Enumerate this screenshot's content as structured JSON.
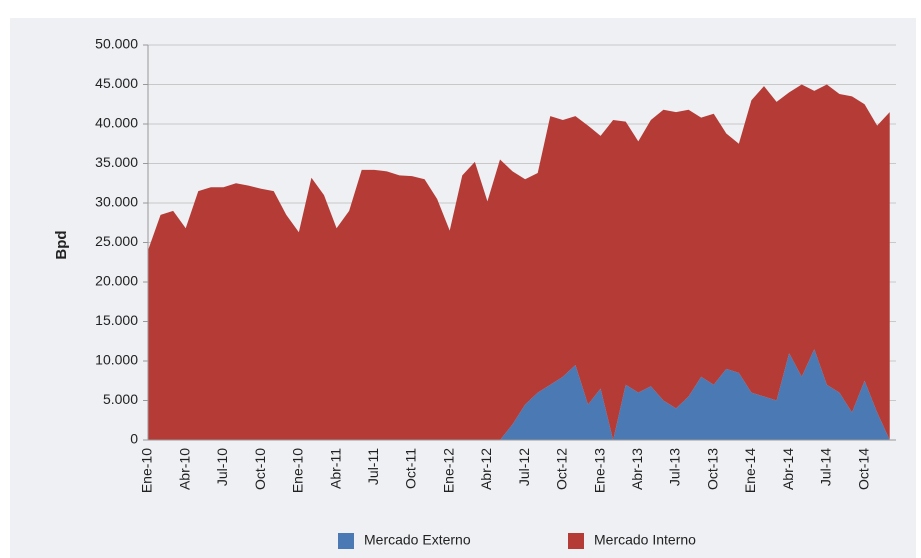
{
  "chart_data": {
    "type": "area",
    "stacked": true,
    "y_label": "Bpd",
    "categories": [
      "Ene-10",
      null,
      null,
      "Abr-10",
      null,
      null,
      "Jul-10",
      null,
      null,
      "Oct-10",
      null,
      null,
      "Ene-10",
      null,
      null,
      "Abr-11",
      null,
      null,
      "Jul-11",
      null,
      null,
      "Oct-11",
      null,
      null,
      "Ene-12",
      null,
      null,
      "Abr-12",
      null,
      null,
      "Jul-12",
      null,
      null,
      "Oct-12",
      null,
      null,
      "Ene-13",
      null,
      null,
      "Abr-13",
      null,
      null,
      "Jul-13",
      null,
      null,
      "Oct-13",
      null,
      null,
      "Ene-14",
      null,
      null,
      "Abr-14",
      null,
      null,
      "Jul-14",
      null,
      null,
      "Oct-14",
      null,
      null
    ],
    "series": [
      {
        "name": "Mercado Externo",
        "color": "#4a79b4",
        "values": [
          0,
          0,
          0,
          0,
          0,
          0,
          0,
          0,
          0,
          0,
          0,
          0,
          0,
          0,
          0,
          0,
          0,
          0,
          0,
          0,
          0,
          0,
          0,
          0,
          0,
          0,
          0,
          0,
          0,
          2000,
          4500,
          6000,
          7000,
          8000,
          9500,
          4500,
          6500,
          0,
          7000,
          6000,
          6800,
          5000,
          4000,
          5500,
          8000,
          7000,
          9000,
          8500,
          6000,
          5500,
          5000,
          11000,
          8000,
          11500,
          7000,
          6000,
          3500,
          7500,
          3500,
          0
        ]
      },
      {
        "name": "Mercado Interno",
        "color": "#b43b36",
        "values": [
          24000,
          28500,
          29000,
          26800,
          31500,
          32000,
          32000,
          32500,
          32200,
          31800,
          31500,
          28500,
          26300,
          33200,
          31000,
          26800,
          29000,
          34200,
          34200,
          34000,
          33500,
          33400,
          33000,
          30500,
          26500,
          33500,
          35200,
          30200,
          35500,
          32000,
          28500,
          27800,
          34000,
          32500,
          31500,
          35300,
          32000,
          40500,
          33300,
          31800,
          33700,
          36800,
          37500,
          36300,
          32800,
          34300,
          29800,
          29000,
          37000,
          39300,
          37800,
          33000,
          37000,
          32700,
          38000,
          37800,
          40000,
          35000,
          36300,
          41500
        ]
      }
    ],
    "ylim": [
      0,
      50000
    ],
    "yticks": [
      0,
      {
        "value": 5000,
        "label": "5.000"
      },
      {
        "value": 10000,
        "label": "10.000"
      },
      {
        "value": 15000,
        "label": "15.000"
      },
      {
        "value": 20000,
        "label": "20.000"
      },
      {
        "value": 25000,
        "label": "25.000"
      },
      {
        "value": 30000,
        "label": "30.000"
      },
      {
        "value": 35000,
        "label": "35.000"
      },
      {
        "value": 40000,
        "label": "40.000"
      },
      {
        "value": 45000,
        "label": "45.000"
      },
      {
        "value": 50000,
        "label": "50.000"
      }
    ],
    "grid": true,
    "legend": "bottom"
  }
}
